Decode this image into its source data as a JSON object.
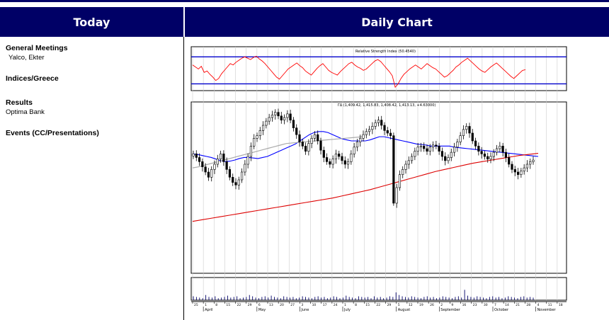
{
  "left_header": "Today",
  "right_header": "Daily Chart",
  "sections": {
    "general_meetings": {
      "title": "General Meetings",
      "item": "Yalco, Ekter"
    },
    "indices": {
      "title": "Indices/Greece"
    },
    "results": {
      "title": "Results",
      "item": "Optima Bank"
    },
    "events": {
      "title": "Events (CC/Presentations)"
    }
  },
  "colors": {
    "header_bg": "#000066",
    "rsi": "#ff0000",
    "ma_short": "#0000ff",
    "ma_long": "#dd0000",
    "ma_mid": "#aaaaaa",
    "candle": "#000000"
  },
  "chart_data": {
    "type": "candlestick",
    "rsi_panel": {
      "label": "Relative Strength Index (50.4540)",
      "ylim": [
        20,
        85
      ],
      "ticks": [
        30,
        40,
        50,
        60,
        70,
        80
      ],
      "levels": [
        30,
        70
      ],
      "values": [
        58,
        55,
        52,
        56,
        47,
        49,
        44,
        40,
        35,
        38,
        45,
        50,
        55,
        60,
        58,
        62,
        65,
        68,
        70,
        68,
        66,
        69,
        71,
        67,
        64,
        60,
        55,
        50,
        45,
        40,
        37,
        42,
        47,
        52,
        55,
        58,
        61,
        57,
        54,
        49,
        46,
        43,
        48,
        53,
        57,
        60,
        55,
        50,
        47,
        45,
        43,
        48,
        52,
        56,
        60,
        62,
        58,
        55,
        53,
        50,
        52,
        56,
        60,
        64,
        66,
        63,
        58,
        53,
        48,
        42,
        25,
        30,
        38,
        44,
        48,
        52,
        55,
        58,
        55,
        52,
        56,
        60,
        57,
        54,
        52,
        48,
        44,
        40,
        42,
        46,
        50,
        55,
        58,
        62,
        65,
        68,
        64,
        60,
        56,
        52,
        49,
        47,
        51,
        55,
        58,
        61,
        57,
        53,
        49,
        45,
        41,
        38,
        42,
        46,
        50,
        51
      ]
    },
    "price_panel": {
      "label": "ΓΔ (1,409.42, 1,415.83, 1,408.42, 1,413.13, +4.63000)",
      "ylim": [
        1195,
        1525
      ],
      "ticks": [
        1200,
        1210,
        1220,
        1230,
        1240,
        1250,
        1260,
        1270,
        1280,
        1290,
        1300,
        1310,
        1320,
        1330,
        1340,
        1350,
        1360,
        1370,
        1380,
        1390,
        1400,
        1410,
        1420,
        1430,
        1440,
        1450,
        1460,
        1470,
        1480,
        1490,
        1500,
        1510,
        1520
      ],
      "closes": [
        1425,
        1418,
        1410,
        1400,
        1390,
        1380,
        1395,
        1405,
        1415,
        1425,
        1410,
        1395,
        1380,
        1370,
        1365,
        1375,
        1390,
        1405,
        1420,
        1440,
        1455,
        1460,
        1470,
        1480,
        1488,
        1495,
        1500,
        1505,
        1498,
        1490,
        1495,
        1502,
        1490,
        1475,
        1462,
        1448,
        1440,
        1430,
        1445,
        1455,
        1462,
        1450,
        1432,
        1418,
        1410,
        1405,
        1415,
        1425,
        1420,
        1412,
        1405,
        1410,
        1425,
        1438,
        1448,
        1455,
        1462,
        1468,
        1472,
        1478,
        1485,
        1490,
        1480,
        1470,
        1465,
        1460,
        1330,
        1360,
        1385,
        1395,
        1405,
        1412,
        1420,
        1430,
        1438,
        1440,
        1435,
        1430,
        1438,
        1442,
        1440,
        1430,
        1420,
        1412,
        1418,
        1428,
        1438,
        1448,
        1460,
        1472,
        1478,
        1465,
        1450,
        1440,
        1430,
        1425,
        1420,
        1415,
        1420,
        1428,
        1435,
        1440,
        1428,
        1418,
        1405,
        1395,
        1390,
        1385,
        1392,
        1398,
        1405,
        1410,
        1413
      ],
      "series": [
        {
          "name": "Moving average (blue)",
          "values": [
            1425,
            1424,
            1422,
            1420,
            1418,
            1415,
            1412,
            1410,
            1411,
            1413,
            1416,
            1418,
            1418,
            1417,
            1416,
            1418,
            1420,
            1424,
            1428,
            1432,
            1436,
            1440,
            1444,
            1450,
            1456,
            1462,
            1466,
            1468,
            1468,
            1466,
            1462,
            1458,
            1454,
            1452,
            1450,
            1450,
            1450,
            1450,
            1452,
            1455,
            1458,
            1458,
            1456,
            1454,
            1452,
            1450,
            1448,
            1446,
            1444,
            1443,
            1442,
            1440,
            1440,
            1440,
            1440,
            1440,
            1438,
            1437,
            1436,
            1435,
            1434,
            1433,
            1432,
            1431,
            1430,
            1429,
            1428,
            1427,
            1426,
            1425,
            1424,
            1423,
            1422,
            1421,
            1420
          ]
        },
        {
          "name": "Moving average (grey)",
          "values": [
            1398,
            1400,
            1403,
            1406,
            1409,
            1412,
            1415,
            1418,
            1421,
            1424,
            1427,
            1430,
            1433,
            1436,
            1439,
            1442,
            1445,
            1446,
            1447,
            1448,
            1449,
            1450,
            1451,
            1452,
            1453,
            1454,
            1455,
            1456,
            1457,
            1458
          ]
        },
        {
          "name": "Moving average (red)",
          "values": [
            1295,
            1298,
            1301,
            1304,
            1307,
            1310,
            1313,
            1316,
            1319,
            1322,
            1325,
            1328,
            1331,
            1334,
            1337,
            1340,
            1344,
            1348,
            1352,
            1356,
            1361,
            1366,
            1371,
            1376,
            1381,
            1386,
            1391,
            1395,
            1399,
            1403,
            1407,
            1410,
            1413,
            1416,
            1419,
            1422,
            1424,
            1426
          ]
        }
      ]
    },
    "volume_panel": {
      "ticks": [
        "30000",
        "20000",
        "10000"
      ],
      "values": [
        6,
        5,
        4,
        3,
        8,
        5,
        4,
        6,
        3,
        4,
        5,
        7,
        4,
        5,
        6,
        3,
        4,
        5,
        8,
        6,
        4,
        3,
        5,
        6,
        4,
        7,
        5,
        4,
        3,
        6,
        5,
        4,
        5,
        3,
        4,
        6,
        5,
        4,
        3,
        5,
        6,
        4,
        5,
        3,
        4,
        6,
        5,
        3,
        4,
        7,
        5,
        4,
        3,
        6,
        5,
        4,
        5,
        3,
        6,
        4,
        5,
        3,
        4,
        6,
        5,
        12,
        8,
        6,
        5,
        4,
        6,
        5,
        4,
        3,
        5,
        6,
        4,
        5,
        3,
        4,
        6,
        5,
        4,
        3,
        5,
        6,
        4,
        16,
        7,
        5,
        4,
        6,
        5,
        4,
        3,
        5,
        6,
        4,
        5,
        3,
        4,
        6,
        5,
        4,
        3,
        5,
        6,
        4,
        5,
        4
      ]
    },
    "x_axis": {
      "months": [
        "April",
        "May",
        "June",
        "July",
        "August",
        "September",
        "October",
        "November"
      ],
      "days": [
        "25",
        "1",
        "8",
        "15",
        "22",
        "29",
        "6",
        "13",
        "20",
        "27",
        "3",
        "10",
        "17",
        "24",
        "1",
        "8",
        "15",
        "22",
        "29",
        "5",
        "12",
        "19",
        "26",
        "2",
        "9",
        "16",
        "23",
        "30",
        "7",
        "14",
        "21",
        "28",
        "4",
        "11",
        "18"
      ]
    }
  }
}
